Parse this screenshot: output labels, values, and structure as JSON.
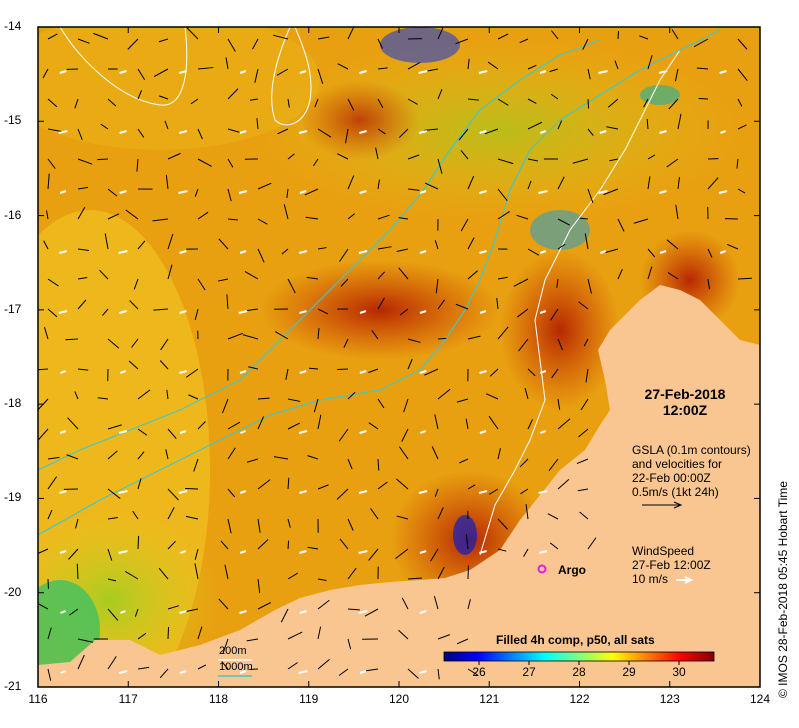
{
  "axes": {
    "lon_ticks": [
      "116",
      "117",
      "118",
      "119",
      "120",
      "121",
      "122",
      "123",
      "124"
    ],
    "lat_ticks": [
      "-14",
      "-15",
      "-16",
      "-17",
      "-18",
      "-19",
      "-20",
      "-21"
    ],
    "lon_range": [
      116,
      124
    ],
    "lat_range": [
      -21,
      -14
    ]
  },
  "datetime": {
    "date": "27-Feb-2018",
    "time": "12:00Z"
  },
  "gsla_note": {
    "line1": "GSLA (0.1m contours)",
    "line2": "and velocities for",
    "line3": "22-Feb 00:00Z",
    "line4": "0.5m/s (1kt 24h)"
  },
  "wind_note": {
    "line1": "WindSpeed",
    "line2": "27-Feb 12:00Z",
    "line3": "10 m/s"
  },
  "argo": {
    "label": "Argo",
    "color": "#e020e0"
  },
  "bathymetry_legend": [
    {
      "label": "200m",
      "color": "#ffffff"
    },
    {
      "label": "1000m",
      "color": "#40c8c8"
    }
  ],
  "colorbar": {
    "title": "Filled 4h comp, p50, all sats",
    "ticks": [
      "26",
      "27",
      "28",
      "29",
      "30"
    ],
    "range": [
      25.3,
      30.7
    ],
    "colors": [
      "#00007f",
      "#0000ff",
      "#0080ff",
      "#00ffff",
      "#80ff80",
      "#ffff00",
      "#ff8000",
      "#ff0000",
      "#800000"
    ]
  },
  "credit": "IMOS 28-Feb-2018 05:45 Hobart Time",
  "colors": {
    "land": "#f9c591",
    "frame": "#000000"
  }
}
